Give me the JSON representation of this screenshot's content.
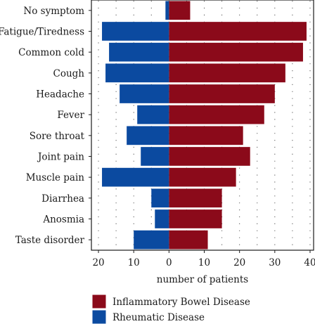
{
  "chart_data": {
    "type": "bar",
    "orientation": "horizontal-diverging",
    "categories": [
      "No symptom",
      "Fatigue/Tiredness",
      "Common cold",
      "Cough",
      "Headache",
      "Fever",
      "Sore throat",
      "Joint pain",
      "Muscle pain",
      "Diarrhea",
      "Anosmia",
      "Taste disorder"
    ],
    "series": [
      {
        "name": "Inflammatory Bowel Disease",
        "color": "#8b0a1a",
        "direction": "right",
        "values": [
          6,
          39,
          38,
          33,
          30,
          27,
          21,
          23,
          19,
          15,
          15,
          11
        ]
      },
      {
        "name": "Rheumatic Disease",
        "color": "#0b4aa0",
        "direction": "left",
        "values": [
          1,
          19,
          17,
          18,
          14,
          9,
          12,
          8,
          19,
          5,
          4,
          10
        ]
      }
    ],
    "xlabel": "number of patients",
    "ylabel": "",
    "xlim": [
      -22,
      41
    ],
    "x_ticks": [
      -20,
      -10,
      0,
      10,
      20,
      30,
      40
    ],
    "x_tick_labels": [
      "20",
      "10",
      "0",
      "10",
      "20",
      "30",
      "40"
    ],
    "grid": "dotted",
    "legend_position": "bottom"
  }
}
